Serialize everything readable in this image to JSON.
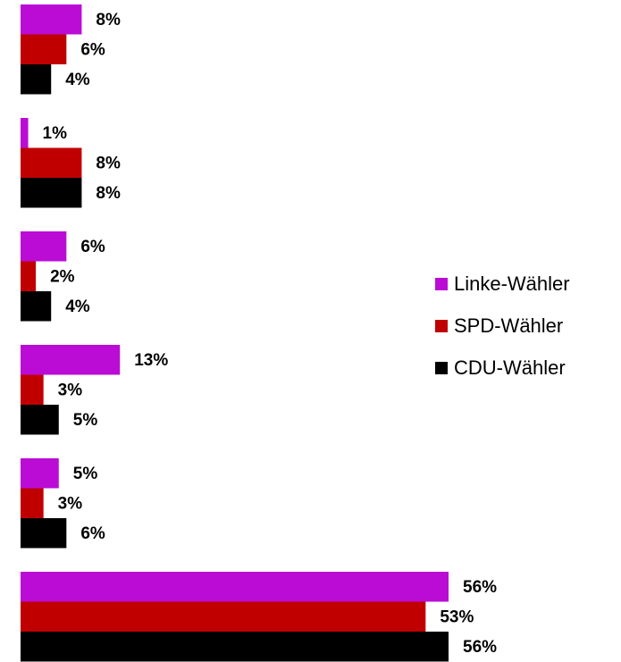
{
  "chart_data": {
    "type": "bar",
    "orientation": "horizontal",
    "categories": [
      null,
      null,
      null,
      null,
      null,
      null
    ],
    "series": [
      {
        "name": "Linke-Wähler",
        "color": "#bb0cd6",
        "values": [
          8,
          1,
          6,
          13,
          5,
          56
        ],
        "value_labels": [
          "8%",
          "1%",
          "6%",
          "13%",
          "5%",
          "56%"
        ]
      },
      {
        "name": "SPD-Wähler",
        "color": "#c00000",
        "values": [
          6,
          8,
          2,
          3,
          3,
          53
        ],
        "value_labels": [
          "6%",
          "8%",
          "2%",
          "3%",
          "3%",
          "53%"
        ]
      },
      {
        "name": "CDU-Wähler",
        "color": "#000000",
        "values": [
          4,
          8,
          4,
          5,
          6,
          56
        ],
        "value_labels": [
          "4%",
          "8%",
          "4%",
          "5%",
          "6%",
          "56%"
        ]
      }
    ],
    "legend": "right"
  }
}
